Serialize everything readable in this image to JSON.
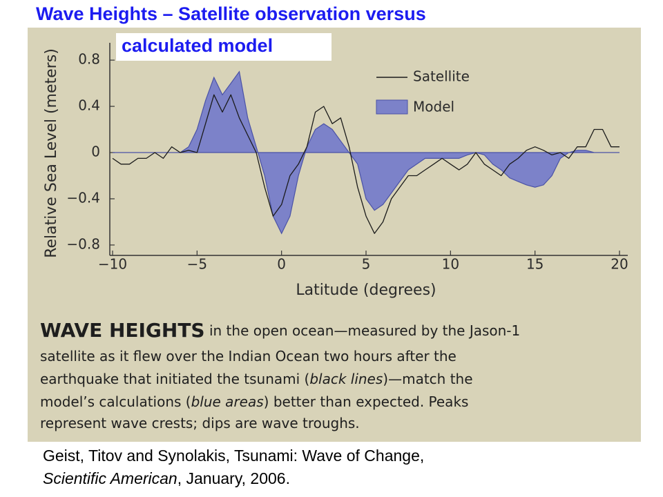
{
  "slide": {
    "title": [
      "Wave Heights – Satellite observation versus",
      "calculated model"
    ]
  },
  "chart_data": {
    "type": "line-area",
    "xlabel": "Latitude (degrees)",
    "ylabel": "Relative Sea Level (meters)",
    "xlim": [
      -10,
      20
    ],
    "ylim": [
      -0.89,
      0.95
    ],
    "xticks": [
      {
        "value": -10,
        "label": "−10"
      },
      {
        "value": -5,
        "label": "−5"
      },
      0,
      5,
      10,
      15,
      20
    ],
    "yticks": [
      0.8,
      0.4,
      0,
      {
        "value": -0.4,
        "label": "−0.4"
      },
      {
        "value": -0.8,
        "label": "−0.8"
      }
    ],
    "x": [
      -10,
      -9.5,
      -9,
      -8.5,
      -8,
      -7.5,
      -7,
      -6.5,
      -6,
      -5.5,
      -5,
      -4.5,
      -4,
      -3.5,
      -3,
      -2.5,
      -2,
      -1.5,
      -1,
      -0.5,
      0,
      0.5,
      1,
      1.5,
      2,
      2.5,
      3,
      3.5,
      4,
      4.5,
      5,
      5.5,
      6,
      6.5,
      7,
      7.5,
      8,
      8.5,
      9,
      9.5,
      10,
      10.5,
      11,
      11.5,
      12,
      12.5,
      13,
      13.5,
      14,
      14.5,
      15,
      15.5,
      16,
      16.5,
      17,
      17.5,
      18,
      18.5,
      19,
      19.5,
      20
    ],
    "series": [
      {
        "name": "Satellite",
        "color": "#1a1a1a",
        "values": [
          -0.05,
          -0.1,
          -0.1,
          -0.05,
          -0.05,
          0.0,
          -0.05,
          0.05,
          0.0,
          0.02,
          0.0,
          0.25,
          0.5,
          0.35,
          0.5,
          0.3,
          0.15,
          0.0,
          -0.3,
          -0.55,
          -0.45,
          -0.2,
          -0.1,
          0.05,
          0.35,
          0.4,
          0.25,
          0.3,
          0.05,
          -0.3,
          -0.55,
          -0.7,
          -0.6,
          -0.4,
          -0.3,
          -0.2,
          -0.2,
          -0.15,
          -0.1,
          -0.05,
          -0.1,
          -0.15,
          -0.1,
          0.0,
          -0.1,
          -0.15,
          -0.2,
          -0.1,
          -0.05,
          0.02,
          0.05,
          0.02,
          -0.02,
          0.0,
          -0.05,
          0.05,
          0.05,
          0.2,
          0.2,
          0.05,
          0.05
        ]
      },
      {
        "name": "Model",
        "color": "#7c82c9",
        "values": [
          0.0,
          0.0,
          0.0,
          0.0,
          0.0,
          0.0,
          0.0,
          0.0,
          0.0,
          0.05,
          0.2,
          0.45,
          0.65,
          0.5,
          0.6,
          0.7,
          0.3,
          0.05,
          -0.2,
          -0.55,
          -0.7,
          -0.55,
          -0.2,
          0.05,
          0.2,
          0.25,
          0.2,
          0.1,
          0.0,
          -0.1,
          -0.4,
          -0.5,
          -0.45,
          -0.35,
          -0.25,
          -0.15,
          -0.1,
          -0.05,
          -0.05,
          -0.05,
          -0.05,
          -0.05,
          -0.02,
          0.0,
          -0.02,
          -0.1,
          -0.15,
          -0.22,
          -0.25,
          -0.28,
          -0.3,
          -0.28,
          -0.2,
          -0.05,
          0.0,
          0.02,
          0.02,
          0.0,
          0.0,
          0.0,
          0.0
        ]
      }
    ]
  },
  "caption": {
    "lines": [
      [
        "WAVE HEIGHTS",
        " in the open ocean—measured by the Jason-1"
      ],
      [
        "satellite as it flew over the Indian Ocean two hours after the"
      ],
      [
        "earthquake that initiated the tsunami (",
        "black lines",
        ")—match the"
      ],
      [
        "model’s calculations (",
        "blue areas",
        ") better than expected. Peaks"
      ],
      [
        "represent wave crests; dips are wave troughs."
      ]
    ]
  },
  "citation": {
    "lines": [
      [
        "Geist, Titov and Synolakis, Tsunami: Wave of Change,"
      ],
      [
        "Scientific American",
        ", January, 2006."
      ]
    ]
  }
}
